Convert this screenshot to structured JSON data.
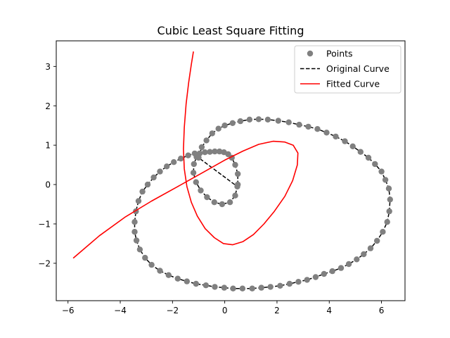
{
  "chart_data": {
    "type": "line",
    "title": "Cubic Least Square Fitting",
    "xlabel": "",
    "ylabel": "",
    "xlim": [
      -6.45,
      6.9
    ],
    "ylim": [
      -2.95,
      3.65
    ],
    "xticks": [
      -6,
      -4,
      -2,
      0,
      2,
      4,
      6
    ],
    "yticks": [
      -2,
      -1,
      0,
      1,
      2,
      3
    ],
    "grid": false,
    "legend_position": "top-right",
    "series": [
      {
        "name": "Points",
        "kind": "markers",
        "color": "#808080",
        "points": [
          [
            0.5,
            0.0
          ],
          [
            0.5,
            0.27
          ],
          [
            0.4,
            0.5
          ],
          [
            0.27,
            0.68
          ],
          [
            0.13,
            0.77
          ],
          [
            -0.03,
            0.82
          ],
          [
            -0.2,
            0.84
          ],
          [
            -0.38,
            0.84
          ],
          [
            -0.57,
            0.83
          ],
          [
            -0.76,
            0.82
          ],
          [
            -0.96,
            0.79
          ],
          [
            -1.08,
            0.7
          ],
          [
            -1.18,
            0.52
          ],
          [
            -1.2,
            0.3
          ],
          [
            -1.1,
            0.06
          ],
          [
            -0.92,
            -0.15
          ],
          [
            -0.68,
            -0.32
          ],
          [
            -0.4,
            -0.45
          ],
          [
            -0.1,
            -0.5
          ],
          [
            0.2,
            -0.45
          ],
          [
            0.4,
            -0.28
          ],
          [
            0.48,
            -0.05
          ],
          [
            -1.0,
            0.68
          ],
          [
            -0.88,
            0.95
          ],
          [
            -0.7,
            1.12
          ],
          [
            -0.48,
            1.3
          ],
          [
            -0.24,
            1.42
          ],
          [
            0.0,
            1.5
          ],
          [
            0.3,
            1.56
          ],
          [
            0.6,
            1.61
          ],
          [
            0.95,
            1.65
          ],
          [
            1.3,
            1.66
          ],
          [
            1.65,
            1.65
          ],
          [
            2.05,
            1.62
          ],
          [
            2.45,
            1.58
          ],
          [
            2.85,
            1.52
          ],
          [
            3.2,
            1.47
          ],
          [
            3.55,
            1.41
          ],
          [
            3.9,
            1.32
          ],
          [
            4.25,
            1.22
          ],
          [
            4.6,
            1.1
          ],
          [
            4.9,
            0.97
          ],
          [
            5.2,
            0.83
          ],
          [
            5.5,
            0.68
          ],
          [
            5.75,
            0.52
          ],
          [
            6.0,
            0.33
          ],
          [
            6.15,
            0.12
          ],
          [
            6.28,
            -0.1
          ],
          [
            6.33,
            -0.38
          ],
          [
            6.3,
            -0.68
          ],
          [
            6.22,
            -0.95
          ],
          [
            6.05,
            -1.2
          ],
          [
            5.83,
            -1.43
          ],
          [
            5.58,
            -1.62
          ],
          [
            5.32,
            -1.77
          ],
          [
            5.05,
            -1.9
          ],
          [
            4.75,
            -2.02
          ],
          [
            4.45,
            -2.12
          ],
          [
            4.12,
            -2.2
          ],
          [
            3.8,
            -2.27
          ],
          [
            3.48,
            -2.35
          ],
          [
            3.15,
            -2.42
          ],
          [
            2.82,
            -2.47
          ],
          [
            2.48,
            -2.52
          ],
          [
            2.12,
            -2.57
          ],
          [
            1.75,
            -2.6
          ],
          [
            1.4,
            -2.62
          ],
          [
            1.05,
            -2.64
          ],
          [
            0.68,
            -2.64
          ],
          [
            0.32,
            -2.64
          ],
          [
            -0.02,
            -2.62
          ],
          [
            -0.38,
            -2.6
          ],
          [
            -0.72,
            -2.56
          ],
          [
            -1.1,
            -2.52
          ],
          [
            -1.45,
            -2.46
          ],
          [
            -1.8,
            -2.39
          ],
          [
            -2.15,
            -2.3
          ],
          [
            -2.48,
            -2.19
          ],
          [
            -2.8,
            -2.04
          ],
          [
            -3.05,
            -1.86
          ],
          [
            -3.25,
            -1.65
          ],
          [
            -3.38,
            -1.42
          ],
          [
            -3.45,
            -1.2
          ],
          [
            -3.45,
            -0.95
          ],
          [
            -3.4,
            -0.68
          ],
          [
            -3.3,
            -0.42
          ],
          [
            -3.15,
            -0.18
          ],
          [
            -2.95,
            0.0
          ],
          [
            -2.72,
            0.18
          ],
          [
            -2.48,
            0.33
          ],
          [
            -2.22,
            0.46
          ],
          [
            -1.95,
            0.57
          ],
          [
            -1.68,
            0.66
          ],
          [
            -1.4,
            0.74
          ],
          [
            -1.15,
            0.79
          ]
        ]
      },
      {
        "name": "Original Curve",
        "kind": "dashed-line",
        "color": "#000000",
        "points": [
          [
            0.5,
            0.0
          ],
          [
            0.5,
            0.27
          ],
          [
            0.4,
            0.5
          ],
          [
            0.27,
            0.68
          ],
          [
            0.13,
            0.77
          ],
          [
            -0.03,
            0.82
          ],
          [
            -0.2,
            0.84
          ],
          [
            -0.38,
            0.84
          ],
          [
            -0.57,
            0.83
          ],
          [
            -0.76,
            0.82
          ],
          [
            -0.96,
            0.79
          ],
          [
            -1.08,
            0.7
          ],
          [
            -1.18,
            0.52
          ],
          [
            -1.2,
            0.3
          ],
          [
            -1.1,
            0.06
          ],
          [
            -0.92,
            -0.15
          ],
          [
            -0.68,
            -0.32
          ],
          [
            -0.4,
            -0.45
          ],
          [
            -0.1,
            -0.5
          ],
          [
            0.2,
            -0.45
          ],
          [
            0.4,
            -0.28
          ],
          [
            0.48,
            -0.05
          ]
        ]
      },
      {
        "name": "Fitted Curve",
        "kind": "line",
        "color": "#ff0000",
        "points": [
          [
            -1.2,
            3.38
          ],
          [
            -1.28,
            3.05
          ],
          [
            -1.38,
            2.6
          ],
          [
            -1.48,
            2.05
          ],
          [
            -1.55,
            1.45
          ],
          [
            -1.58,
            0.9
          ],
          [
            -1.55,
            0.4
          ],
          [
            -1.45,
            -0.05
          ],
          [
            -1.28,
            -0.45
          ],
          [
            -1.05,
            -0.8
          ],
          [
            -0.75,
            -1.12
          ],
          [
            -0.4,
            -1.35
          ],
          [
            -0.05,
            -1.5
          ],
          [
            0.3,
            -1.53
          ],
          [
            0.7,
            -1.45
          ],
          [
            1.1,
            -1.27
          ],
          [
            1.5,
            -1.0
          ],
          [
            1.9,
            -0.68
          ],
          [
            2.3,
            -0.3
          ],
          [
            2.6,
            0.1
          ],
          [
            2.78,
            0.5
          ],
          [
            2.8,
            0.8
          ],
          [
            2.62,
            1.0
          ],
          [
            2.3,
            1.08
          ],
          [
            1.85,
            1.1
          ],
          [
            1.3,
            1.02
          ],
          [
            0.7,
            0.85
          ],
          [
            0.0,
            0.62
          ],
          [
            -0.8,
            0.32
          ],
          [
            -1.8,
            -0.05
          ],
          [
            -2.8,
            -0.42
          ],
          [
            -3.8,
            -0.82
          ],
          [
            -4.8,
            -1.3
          ],
          [
            -5.8,
            -1.87
          ]
        ]
      }
    ]
  }
}
